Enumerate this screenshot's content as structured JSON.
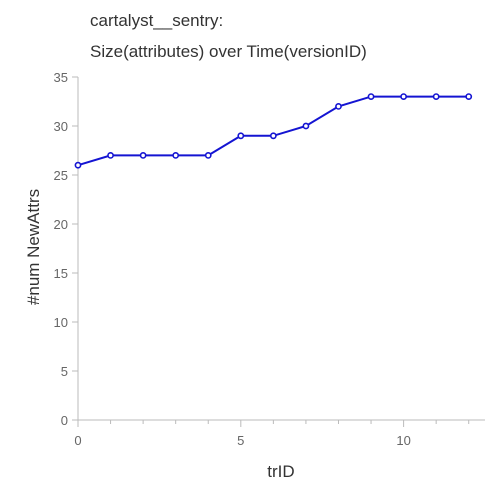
{
  "chart_data": {
    "type": "line",
    "title_lines": [
      "cartalyst__sentry:",
      "Size(attributes) over Time(versionID)"
    ],
    "xlabel": "trID",
    "ylabel": "#num NewAttrs",
    "xlim": [
      0,
      12.5
    ],
    "ylim": [
      0,
      35
    ],
    "x_ticks": [
      0,
      5,
      10
    ],
    "y_ticks": [
      0,
      5,
      10,
      15,
      20,
      25,
      30,
      35
    ],
    "grid": false,
    "series": [
      {
        "color": "#1414d2",
        "x": [
          0,
          1,
          2,
          3,
          4,
          5,
          6,
          7,
          8,
          9,
          10,
          11,
          12
        ],
        "y": [
          26,
          27,
          27,
          27,
          27,
          29,
          29,
          30,
          32,
          33,
          33,
          33,
          33
        ]
      }
    ]
  }
}
